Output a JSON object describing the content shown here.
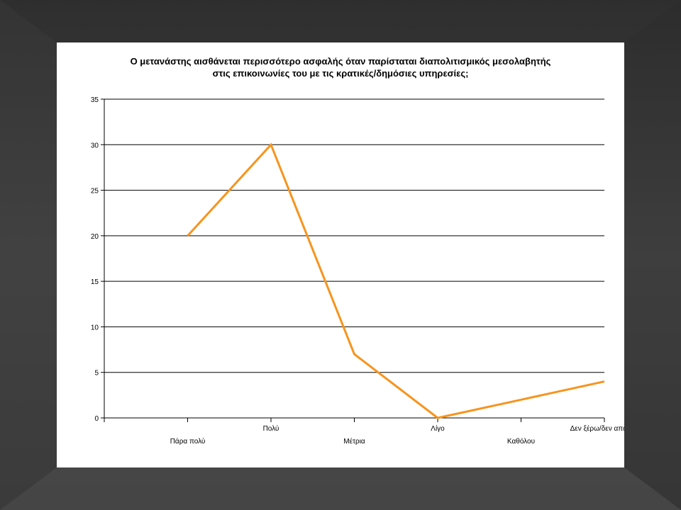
{
  "chart_data": {
    "type": "line",
    "title_lines": [
      "Ο μετανάστης αισθάνεται περισσότερο ασφαλής όταν παρίσταται διαπολιτισμικός μεσολαβητής",
      "στις επικοινωνίες του με τις κρατικές/δημόσιες υπηρεσίες;"
    ],
    "categories": [
      "Πάρα πολύ",
      "Πολύ",
      "Μέτρια",
      "Λίγο",
      "Καθόλου",
      "Δεν ξέρω/δεν απαντώ"
    ],
    "series": [
      {
        "values": [
          20,
          30,
          7,
          0,
          2,
          4
        ],
        "color": "#f7941d"
      }
    ],
    "ylim": [
      0,
      35
    ],
    "yticks": [
      0,
      5,
      10,
      15,
      20,
      25,
      30,
      35
    ],
    "xlabel": "",
    "ylabel": "",
    "grid": true,
    "legend": "none"
  },
  "colors": {
    "gridline": "#000000",
    "line": "#f7941d"
  }
}
